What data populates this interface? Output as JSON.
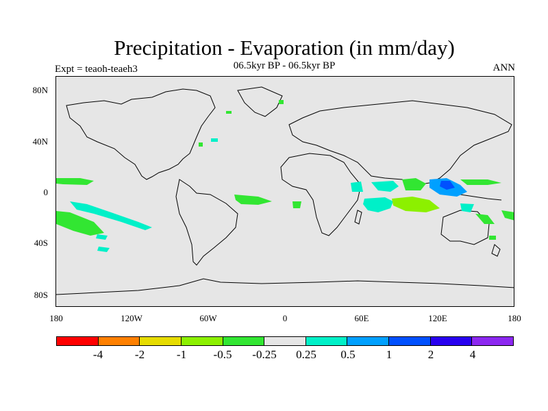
{
  "header": {
    "title": "Precipitation - Evaporation (in mm/day)",
    "subtitle": "06.5kyr BP - 06.5kyr BP",
    "left_label": "Expt = teaoh-teaeh3",
    "right_label": "ANN"
  },
  "map": {
    "lat_labels": [
      "80N",
      "40N",
      "0",
      "40S",
      "80S"
    ],
    "lon_labels": [
      "180",
      "120W",
      "60W",
      "0",
      "60E",
      "120E",
      "180"
    ],
    "background_color": "#e6e6e6"
  },
  "colorbar": {
    "colors": [
      "#ff0000",
      "#ff8000",
      "#e6dc00",
      "#8cf000",
      "#32e632",
      "#e6e6e6",
      "#00f0c8",
      "#00a0ff",
      "#0050ff",
      "#2800f0",
      "#8c28f0"
    ],
    "labels": [
      "-4",
      "-2",
      "-1",
      "-0.5",
      "-0.25",
      "0.25",
      "0.5",
      "1",
      "2",
      "4"
    ]
  }
}
